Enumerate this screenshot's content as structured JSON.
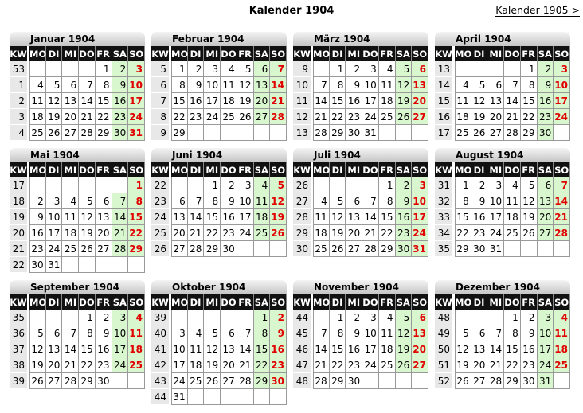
{
  "page_title": "Kalender 1904",
  "next_link": "Kalender 1905 >",
  "headers": [
    "KW",
    "MO",
    "DI",
    "MI",
    "DO",
    "FR",
    "SA",
    "SO"
  ],
  "colors": {
    "weekend_bg": "#d9f7cf",
    "sunday_text": "#e00000",
    "header_bg": "#111111",
    "kw_bg": "#e8e8e8"
  },
  "months": [
    {
      "title": "Januar 1904",
      "weeks": [
        {
          "kw": 53,
          "days": [
            null,
            null,
            null,
            null,
            1,
            2,
            3
          ]
        },
        {
          "kw": 1,
          "days": [
            4,
            5,
            6,
            7,
            8,
            9,
            10
          ]
        },
        {
          "kw": 2,
          "days": [
            11,
            12,
            13,
            14,
            15,
            16,
            17
          ]
        },
        {
          "kw": 3,
          "days": [
            18,
            19,
            20,
            21,
            22,
            23,
            24
          ]
        },
        {
          "kw": 4,
          "days": [
            25,
            26,
            27,
            28,
            29,
            30,
            31
          ]
        }
      ]
    },
    {
      "title": "Februar 1904",
      "weeks": [
        {
          "kw": 5,
          "days": [
            1,
            2,
            3,
            4,
            5,
            6,
            7
          ]
        },
        {
          "kw": 6,
          "days": [
            8,
            9,
            10,
            11,
            12,
            13,
            14
          ]
        },
        {
          "kw": 7,
          "days": [
            15,
            16,
            17,
            18,
            19,
            20,
            21
          ]
        },
        {
          "kw": 8,
          "days": [
            22,
            23,
            24,
            25,
            26,
            27,
            28
          ]
        },
        {
          "kw": 9,
          "days": [
            29,
            null,
            null,
            null,
            null,
            null,
            null
          ]
        }
      ]
    },
    {
      "title": "März 1904",
      "weeks": [
        {
          "kw": 9,
          "days": [
            null,
            1,
            2,
            3,
            4,
            5,
            6
          ]
        },
        {
          "kw": 10,
          "days": [
            7,
            8,
            9,
            10,
            11,
            12,
            13
          ]
        },
        {
          "kw": 11,
          "days": [
            14,
            15,
            16,
            17,
            18,
            19,
            20
          ]
        },
        {
          "kw": 12,
          "days": [
            21,
            22,
            23,
            24,
            25,
            26,
            27
          ]
        },
        {
          "kw": 13,
          "days": [
            28,
            29,
            30,
            31,
            null,
            null,
            null
          ]
        }
      ]
    },
    {
      "title": "April 1904",
      "weeks": [
        {
          "kw": 13,
          "days": [
            null,
            null,
            null,
            null,
            1,
            2,
            3
          ]
        },
        {
          "kw": 14,
          "days": [
            4,
            5,
            6,
            7,
            8,
            9,
            10
          ]
        },
        {
          "kw": 15,
          "days": [
            11,
            12,
            13,
            14,
            15,
            16,
            17
          ]
        },
        {
          "kw": 16,
          "days": [
            18,
            19,
            20,
            21,
            22,
            23,
            24
          ]
        },
        {
          "kw": 17,
          "days": [
            25,
            26,
            27,
            28,
            29,
            30,
            null
          ]
        }
      ]
    },
    {
      "title": "Mai 1904",
      "weeks": [
        {
          "kw": 17,
          "days": [
            null,
            null,
            null,
            null,
            null,
            null,
            1
          ]
        },
        {
          "kw": 18,
          "days": [
            2,
            3,
            4,
            5,
            6,
            7,
            8
          ]
        },
        {
          "kw": 19,
          "days": [
            9,
            10,
            11,
            12,
            13,
            14,
            15
          ]
        },
        {
          "kw": 20,
          "days": [
            16,
            17,
            18,
            19,
            20,
            21,
            22
          ]
        },
        {
          "kw": 21,
          "days": [
            23,
            24,
            25,
            26,
            27,
            28,
            29
          ]
        },
        {
          "kw": 22,
          "days": [
            30,
            31,
            null,
            null,
            null,
            null,
            null
          ]
        }
      ]
    },
    {
      "title": "Juni 1904",
      "weeks": [
        {
          "kw": 22,
          "days": [
            null,
            null,
            1,
            2,
            3,
            4,
            5
          ]
        },
        {
          "kw": 23,
          "days": [
            6,
            7,
            8,
            9,
            10,
            11,
            12
          ]
        },
        {
          "kw": 24,
          "days": [
            13,
            14,
            15,
            16,
            17,
            18,
            19
          ]
        },
        {
          "kw": 25,
          "days": [
            20,
            21,
            22,
            23,
            24,
            25,
            26
          ]
        },
        {
          "kw": 26,
          "days": [
            27,
            28,
            29,
            30,
            null,
            null,
            null
          ]
        }
      ]
    },
    {
      "title": "Juli 1904",
      "weeks": [
        {
          "kw": 26,
          "days": [
            null,
            null,
            null,
            null,
            1,
            2,
            3
          ]
        },
        {
          "kw": 27,
          "days": [
            4,
            5,
            6,
            7,
            8,
            9,
            10
          ]
        },
        {
          "kw": 28,
          "days": [
            11,
            12,
            13,
            14,
            15,
            16,
            17
          ]
        },
        {
          "kw": 29,
          "days": [
            18,
            19,
            20,
            21,
            22,
            23,
            24
          ]
        },
        {
          "kw": 30,
          "days": [
            25,
            26,
            27,
            28,
            29,
            30,
            31
          ]
        }
      ]
    },
    {
      "title": "August 1904",
      "weeks": [
        {
          "kw": 31,
          "days": [
            1,
            2,
            3,
            4,
            5,
            6,
            7
          ]
        },
        {
          "kw": 32,
          "days": [
            8,
            9,
            10,
            11,
            12,
            13,
            14
          ]
        },
        {
          "kw": 33,
          "days": [
            15,
            16,
            17,
            18,
            19,
            20,
            21
          ]
        },
        {
          "kw": 34,
          "days": [
            22,
            23,
            24,
            25,
            26,
            27,
            28
          ]
        },
        {
          "kw": 35,
          "days": [
            29,
            30,
            31,
            null,
            null,
            null,
            null
          ]
        }
      ]
    },
    {
      "title": "September 1904",
      "weeks": [
        {
          "kw": 35,
          "days": [
            null,
            null,
            null,
            1,
            2,
            3,
            4
          ]
        },
        {
          "kw": 36,
          "days": [
            5,
            6,
            7,
            8,
            9,
            10,
            11
          ]
        },
        {
          "kw": 37,
          "days": [
            12,
            13,
            14,
            15,
            16,
            17,
            18
          ]
        },
        {
          "kw": 38,
          "days": [
            19,
            20,
            21,
            22,
            23,
            24,
            25
          ]
        },
        {
          "kw": 39,
          "days": [
            26,
            27,
            28,
            29,
            30,
            null,
            null
          ]
        }
      ]
    },
    {
      "title": "Oktober 1904",
      "weeks": [
        {
          "kw": 39,
          "days": [
            null,
            null,
            null,
            null,
            null,
            1,
            2
          ]
        },
        {
          "kw": 40,
          "days": [
            3,
            4,
            5,
            6,
            7,
            8,
            9
          ]
        },
        {
          "kw": 41,
          "days": [
            10,
            11,
            12,
            13,
            14,
            15,
            16
          ]
        },
        {
          "kw": 42,
          "days": [
            17,
            18,
            19,
            20,
            21,
            22,
            23
          ]
        },
        {
          "kw": 43,
          "days": [
            24,
            25,
            26,
            27,
            28,
            29,
            30
          ]
        },
        {
          "kw": 44,
          "days": [
            31,
            null,
            null,
            null,
            null,
            null,
            null
          ]
        }
      ]
    },
    {
      "title": "November 1904",
      "weeks": [
        {
          "kw": 44,
          "days": [
            null,
            1,
            2,
            3,
            4,
            5,
            6
          ]
        },
        {
          "kw": 45,
          "days": [
            7,
            8,
            9,
            10,
            11,
            12,
            13
          ]
        },
        {
          "kw": 46,
          "days": [
            14,
            15,
            16,
            17,
            18,
            19,
            20
          ]
        },
        {
          "kw": 47,
          "days": [
            21,
            22,
            23,
            24,
            25,
            26,
            27
          ]
        },
        {
          "kw": 48,
          "days": [
            28,
            29,
            30,
            null,
            null,
            null,
            null
          ]
        }
      ]
    },
    {
      "title": "Dezember 1904",
      "weeks": [
        {
          "kw": 48,
          "days": [
            null,
            null,
            null,
            1,
            2,
            3,
            4
          ]
        },
        {
          "kw": 49,
          "days": [
            5,
            6,
            7,
            8,
            9,
            10,
            11
          ]
        },
        {
          "kw": 50,
          "days": [
            12,
            13,
            14,
            15,
            16,
            17,
            18
          ]
        },
        {
          "kw": 51,
          "days": [
            19,
            20,
            21,
            22,
            23,
            24,
            25
          ]
        },
        {
          "kw": 52,
          "days": [
            26,
            27,
            28,
            29,
            30,
            31,
            null
          ]
        }
      ]
    }
  ]
}
